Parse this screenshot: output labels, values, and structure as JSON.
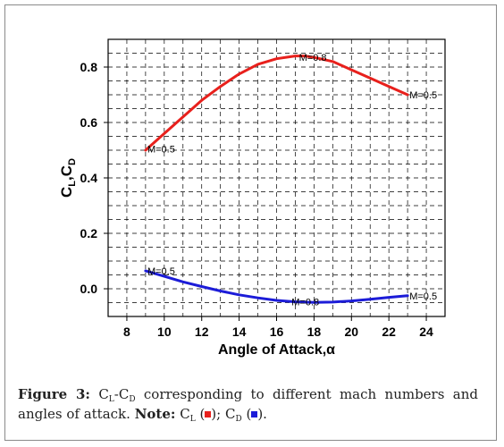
{
  "chart_data": {
    "type": "line",
    "xlabel": "Angle of Attack,α",
    "ylabel": {
      "main": "C",
      "sub1": "L",
      "sep": ",C",
      "sub2": "D"
    },
    "xlim": [
      7,
      25
    ],
    "ylim": [
      -0.1,
      0.9
    ],
    "x_ticks": [
      8,
      10,
      12,
      14,
      16,
      18,
      20,
      22,
      24
    ],
    "y_ticks": [
      0.0,
      0.2,
      0.4,
      0.6,
      0.8
    ],
    "y_tick_labels": [
      "0.0",
      "0.2",
      "0.4",
      "0.6",
      "0.8"
    ],
    "grid": true,
    "series": [
      {
        "color": "#e8201c",
        "x": [
          9,
          10,
          11,
          12,
          13,
          14,
          15,
          16,
          17,
          17.5,
          18,
          19,
          20,
          21,
          22,
          23
        ],
        "y": [
          0.5,
          0.56,
          0.62,
          0.68,
          0.73,
          0.775,
          0.81,
          0.83,
          0.84,
          0.84,
          0.835,
          0.82,
          0.79,
          0.76,
          0.73,
          0.7
        ]
      },
      {
        "color": "#1c1cd8",
        "x": [
          9,
          10,
          11,
          12,
          13,
          14,
          15,
          16,
          17,
          18,
          19,
          20,
          21,
          22,
          23
        ],
        "y": [
          0.065,
          0.045,
          0.025,
          0.008,
          -0.008,
          -0.022,
          -0.033,
          -0.042,
          -0.047,
          -0.049,
          -0.048,
          -0.044,
          -0.038,
          -0.031,
          -0.025
        ]
      }
    ],
    "annotations": [
      {
        "text": "M=0.8",
        "x": 17.2,
        "y": 0.835
      },
      {
        "text": "M=0.5",
        "x": 23.1,
        "y": 0.7
      },
      {
        "text": "M=0.5",
        "x": 9.1,
        "y": 0.505
      },
      {
        "text": "M=0.5",
        "x": 9.1,
        "y": 0.065
      },
      {
        "text": "M=0.8",
        "x": 16.8,
        "y": -0.047
      },
      {
        "text": "M=0.5",
        "x": 23.1,
        "y": -0.025
      }
    ]
  },
  "caption": {
    "label": "Figure 3:",
    "cl_main": "C",
    "cl_sub": "L",
    "dash": "-",
    "cd_main": "C",
    "cd_sub": "D",
    "text": "corresponding to different mach numbers and angles of attack.",
    "note_label": "Note:",
    "note_cl_main": "C",
    "note_cl_sub": "L",
    "note_sep": "; ",
    "note_cd_main": "C",
    "note_cd_sub": "D",
    "note_end": ".",
    "cl_color": "#e8201c",
    "cd_color": "#1c1cd8"
  }
}
